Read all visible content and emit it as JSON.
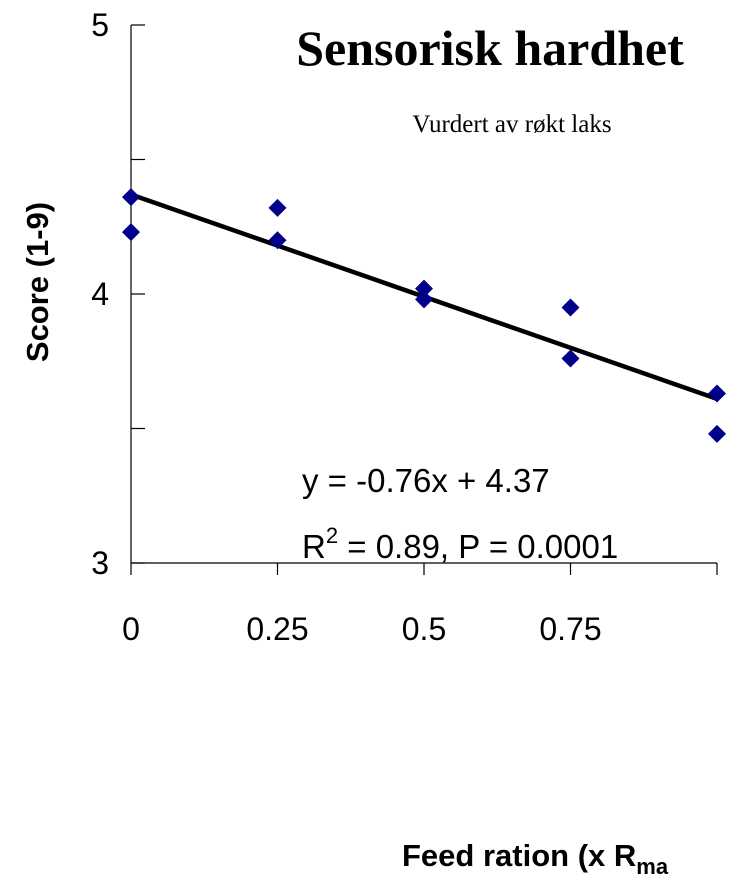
{
  "chart_data": {
    "type": "scatter",
    "title": "Sensorisk hardhet",
    "subtitle": "Vurdert av røkt laks",
    "ylabel": "Score (1-9)",
    "xlabel": {
      "main": "Feed ration (x R",
      "subscript": "ma"
    },
    "xlim": [
      0,
      1
    ],
    "ylim": [
      3,
      5
    ],
    "x_ticks": [
      "0",
      "0.25",
      "0.5",
      "0.75"
    ],
    "x_tick_values": [
      0,
      0.25,
      0.5,
      0.75
    ],
    "y_ticks": [
      "3",
      "4",
      "5"
    ],
    "y_tick_values": [
      3,
      4,
      5
    ],
    "y_minor_ticks": [
      3.5,
      4.5
    ],
    "marker_color": "#00008B",
    "line_color": "#000000",
    "points": [
      {
        "x": 0,
        "y": 4.36
      },
      {
        "x": 0,
        "y": 4.23
      },
      {
        "x": 0.25,
        "y": 4.32
      },
      {
        "x": 0.25,
        "y": 4.2
      },
      {
        "x": 0.5,
        "y": 4.02
      },
      {
        "x": 0.5,
        "y": 3.98
      },
      {
        "x": 0.75,
        "y": 3.95
      },
      {
        "x": 0.75,
        "y": 3.76
      },
      {
        "x": 1,
        "y": 3.63
      },
      {
        "x": 1,
        "y": 3.48
      }
    ],
    "trendline": {
      "slope": -0.76,
      "intercept": 4.37,
      "x_start": 0,
      "x_end": 1
    },
    "annotations": {
      "equation": "y = -0.76x + 4.37",
      "r2_prefix": "R",
      "r2_sup": "2",
      "r2_rest": " = 0.89, P = 0.0001"
    },
    "grid": false,
    "legend": "none"
  }
}
